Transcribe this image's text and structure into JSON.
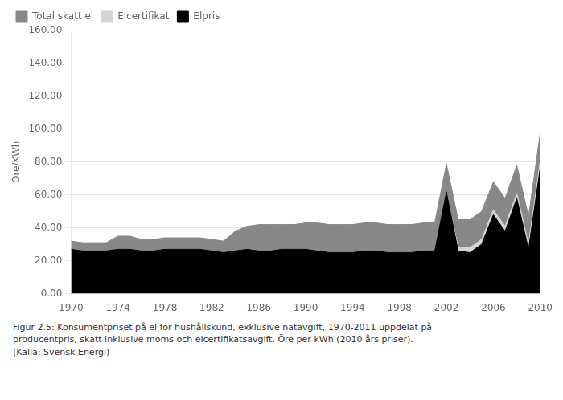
{
  "chart_data": {
    "type": "area",
    "stacked": true,
    "x": [
      1970,
      1971,
      1972,
      1973,
      1974,
      1975,
      1976,
      1977,
      1978,
      1979,
      1980,
      1981,
      1982,
      1983,
      1984,
      1985,
      1986,
      1987,
      1988,
      1989,
      1990,
      1991,
      1992,
      1993,
      1994,
      1995,
      1996,
      1997,
      1998,
      1999,
      2000,
      2001,
      2002,
      2003,
      2004,
      2005,
      2006,
      2007,
      2008,
      2009,
      2010
    ],
    "series": [
      {
        "name": "Elpris",
        "color": "#000000",
        "values": [
          27,
          26,
          26,
          26,
          27,
          27,
          26,
          26,
          27,
          27,
          27,
          27,
          26,
          25,
          26,
          27,
          26,
          26,
          27,
          27,
          27,
          26,
          25,
          25,
          25,
          26,
          26,
          25,
          25,
          25,
          26,
          26,
          62,
          26,
          25,
          30,
          48,
          38,
          58,
          27,
          77
        ]
      },
      {
        "name": "Elcertifikat",
        "color": "#d4d4d4",
        "values": [
          0,
          0,
          0,
          0,
          0,
          0,
          0,
          0,
          0,
          0,
          0,
          0,
          0,
          0,
          0,
          0,
          0,
          0,
          0,
          0,
          0,
          0,
          0,
          0,
          0,
          0,
          0,
          0,
          0,
          0,
          0,
          0,
          0,
          2,
          3,
          3,
          3,
          3,
          3,
          3,
          4
        ]
      },
      {
        "name": "Total skatt el",
        "color": "#888888",
        "values": [
          5,
          5,
          5,
          5,
          8,
          8,
          7,
          7,
          7,
          7,
          7,
          7,
          7,
          7,
          12,
          14,
          16,
          16,
          15,
          15,
          16,
          17,
          17,
          17,
          17,
          17,
          17,
          17,
          17,
          17,
          17,
          17,
          17,
          17,
          17,
          17,
          17,
          17,
          17,
          17,
          17
        ]
      }
    ],
    "ylabel": "Öre/KWh",
    "xlim": [
      1970,
      2010
    ],
    "xticks": [
      1970,
      1974,
      1978,
      1982,
      1986,
      1990,
      1994,
      1998,
      2002,
      2006,
      2010
    ],
    "ylim": [
      0,
      160
    ],
    "yticks": [
      {
        "value": 0,
        "label": "0.00"
      },
      {
        "value": 20,
        "label": "20.00"
      },
      {
        "value": 40,
        "label": "40.00"
      },
      {
        "value": 60,
        "label": "60.00"
      },
      {
        "value": 80,
        "label": "80.00"
      },
      {
        "value": 100,
        "label": "100.00"
      },
      {
        "value": 120,
        "label": "120.00"
      },
      {
        "value": 140,
        "label": "140.00"
      },
      {
        "value": 160,
        "label": "160.00"
      }
    ],
    "grid": "y",
    "legend": "upper left",
    "caption": "Figur 2.5: Konsumentpriset på el för hushållskund, exklusive nätavgift, 1970-2011 uppdelat på\nproducentpris, skatt inklusive moms och elcertifikatsavgift. Öre per kWh (2010 års priser).\n(Källa: Svensk Energi)"
  }
}
